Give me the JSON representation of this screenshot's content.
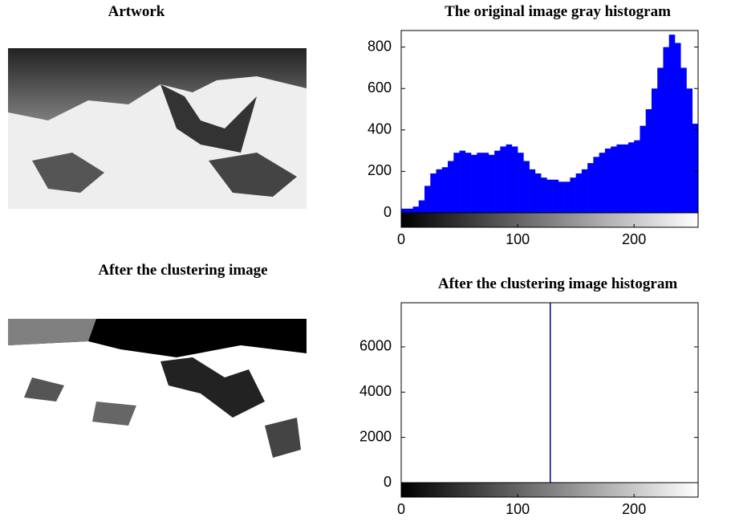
{
  "image_titles": [
    "Artwork",
    "After the clustering image"
  ],
  "chart_data": [
    {
      "type": "histogram",
      "title": "The original image gray histogram",
      "bins": [
        0,
        5,
        10,
        15,
        20,
        25,
        30,
        35,
        40,
        45,
        50,
        55,
        60,
        65,
        70,
        75,
        80,
        85,
        90,
        95,
        100,
        105,
        110,
        115,
        120,
        125,
        130,
        135,
        140,
        145,
        150,
        155,
        160,
        165,
        170,
        175,
        180,
        185,
        190,
        195,
        200,
        205,
        210,
        215,
        220,
        225,
        230,
        235,
        240,
        245,
        250,
        255
      ],
      "values": [
        20,
        20,
        30,
        60,
        130,
        190,
        210,
        220,
        250,
        290,
        300,
        290,
        280,
        290,
        290,
        280,
        300,
        320,
        330,
        320,
        290,
        250,
        210,
        190,
        170,
        160,
        160,
        150,
        150,
        170,
        190,
        210,
        240,
        270,
        290,
        310,
        320,
        330,
        330,
        340,
        350,
        420,
        500,
        600,
        700,
        800,
        860,
        820,
        700,
        600,
        430
      ],
      "color": "#0000ff",
      "xlim": [
        0,
        255
      ],
      "xticks": [
        0,
        100,
        200
      ],
      "ylim": [
        0,
        880
      ],
      "yticks": [
        0,
        200,
        400,
        600,
        800
      ],
      "colorbar": true
    },
    {
      "type": "stem",
      "title": "After the clustering image histogram",
      "x": [
        128
      ],
      "values": [
        7950
      ],
      "color": "#00008b",
      "xlim": [
        0,
        255
      ],
      "xticks": [
        0,
        100,
        200
      ],
      "ylim": [
        0,
        7950
      ],
      "yticks": [
        0,
        2000,
        4000,
        6000
      ],
      "colorbar": true
    }
  ]
}
